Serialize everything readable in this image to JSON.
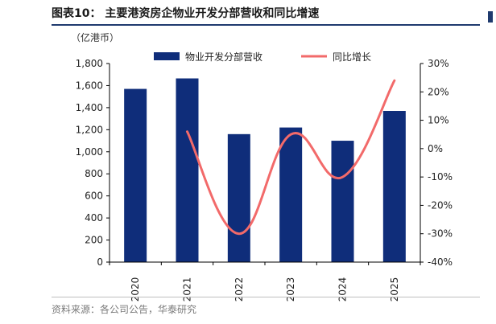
{
  "title": "图表10：  主要港资房企物业开发分部营收和同比增速",
  "unit": "（亿港币）",
  "source": "资料来源：各公司公告，华泰研究",
  "colors": {
    "bar": "#0f2d7a",
    "line": "#f26a6a",
    "axis": "#000000",
    "rule": "#1f3a6e"
  },
  "chart_data": {
    "type": "bar",
    "categories": [
      "2020",
      "2021",
      "2022",
      "2023",
      "2024",
      "2025"
    ],
    "series": [
      {
        "name": "物业开发分部营收",
        "type": "bar",
        "axis": "left",
        "values": [
          1570,
          1665,
          1160,
          1220,
          1100,
          1370
        ]
      },
      {
        "name": "同比增长",
        "type": "line",
        "axis": "right",
        "values": [
          null,
          6,
          -30,
          5,
          -10,
          24
        ]
      }
    ],
    "y_left": {
      "min": 0,
      "max": 1800,
      "ticks": [
        "0",
        "200",
        "400",
        "600",
        "800",
        "1,000",
        "1,200",
        "1,400",
        "1,600",
        "1,800"
      ]
    },
    "y_right": {
      "min": -40,
      "max": 30,
      "ticks": [
        "-40%",
        "-30%",
        "-20%",
        "-10%",
        "0%",
        "10%",
        "20%",
        "30%"
      ]
    },
    "legend_position": "top",
    "grid": false
  }
}
